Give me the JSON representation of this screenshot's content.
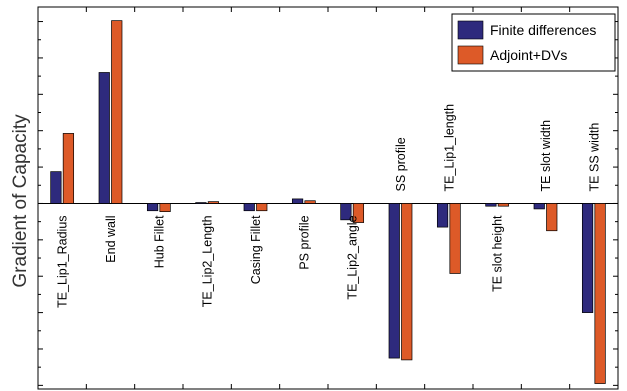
{
  "chart_data": {
    "type": "bar",
    "ylabel": "Gradient of Capacity",
    "xlabel": "",
    "title": "",
    "categories": [
      "TE_Lip1_Radius",
      "End wall",
      "Hub Fillet",
      "TE_Lip2_Length",
      "Casing Fillet",
      "PS profile",
      "TE_Lip2_angle",
      "SS profile",
      "TE_Lip1_length",
      "TE slot height",
      "TE slot width",
      "TE SS width"
    ],
    "series": [
      {
        "name": "Finite differences",
        "color": "#2e2a7d",
        "values": [
          1.75,
          7.2,
          -0.4,
          0.05,
          -0.4,
          0.25,
          -0.9,
          -8.5,
          -1.3,
          -0.15,
          -0.3,
          -6.0
        ]
      },
      {
        "name": "Adjoint+DVs",
        "color": "#dd5a28",
        "values": [
          3.85,
          10.05,
          -0.45,
          0.1,
          -0.4,
          0.15,
          -1.05,
          -8.6,
          -3.85,
          -0.15,
          -1.5,
          -9.9
        ]
      }
    ],
    "ylim": [
      -10.2,
      10.8
    ],
    "yticks_major_step": 2,
    "yticks_minor_step": 1,
    "grid": false,
    "legend_position": "top-right"
  }
}
